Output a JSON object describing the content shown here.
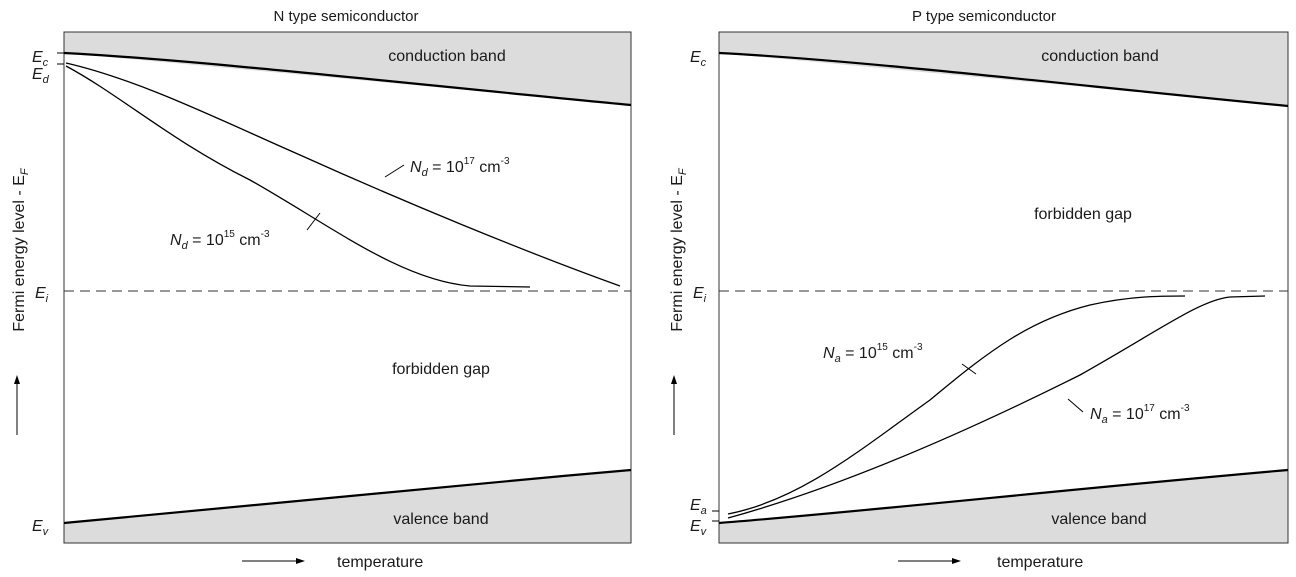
{
  "left_panel": {
    "title": "N  type semiconductor",
    "conduction_band": "conduction band",
    "forbidden_gap": "forbidden gap",
    "valence_band": "valence band",
    "y_axis_label": "Fermi energy level - E",
    "y_axis_label_sub": "F",
    "x_axis_label": "temperature",
    "level_labels": {
      "ec": {
        "main": "E",
        "sub": "c"
      },
      "ed": {
        "main": "E",
        "sub": "d"
      },
      "ei": {
        "main": "E",
        "sub": "i"
      },
      "ev": {
        "main": "E",
        "sub": "v"
      }
    },
    "curve_labels": {
      "high": {
        "sym": "N",
        "sub": "d",
        "text": " = 10",
        "exp": "17",
        "unit": " cm",
        "unit_exp": "-3"
      },
      "low": {
        "sym": "N",
        "sub": "d",
        "text": " = 10",
        "exp": "15",
        "unit": " cm",
        "unit_exp": "-3"
      }
    }
  },
  "right_panel": {
    "title": "P  type semiconductor",
    "conduction_band": "conduction band",
    "forbidden_gap": "forbidden gap",
    "valence_band": "valence band",
    "y_axis_label": "Fermi energy level - E",
    "y_axis_label_sub": "F",
    "x_axis_label": "temperature",
    "level_labels": {
      "ec": {
        "main": "E",
        "sub": "c"
      },
      "ei": {
        "main": "E",
        "sub": "i"
      },
      "ea": {
        "main": "E",
        "sub": "a"
      },
      "ev": {
        "main": "E",
        "sub": "v"
      }
    },
    "curve_labels": {
      "low": {
        "sym": "N",
        "sub": "a",
        "text": " = 10",
        "exp": "15",
        "unit": " cm",
        "unit_exp": "-3"
      },
      "high": {
        "sym": "N",
        "sub": "a",
        "text": " = 10",
        "exp": "17",
        "unit": " cm",
        "unit_exp": "-3"
      }
    }
  },
  "colors": {
    "band_fill": "#dcdcdc",
    "line": "#000000"
  }
}
